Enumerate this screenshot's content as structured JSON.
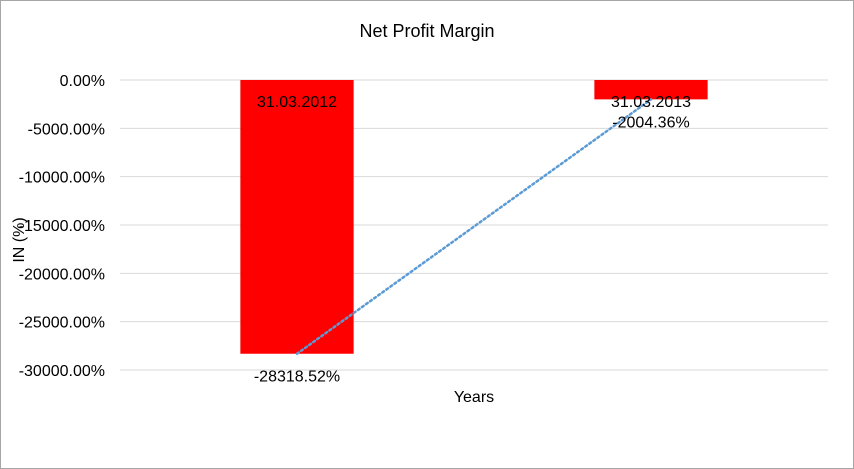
{
  "chart_data": {
    "type": "bar",
    "title": "Net Profit Margin",
    "xlabel": "Years",
    "ylabel": "IN (%)",
    "categories": [
      "31.03.2012",
      "31.03.2013"
    ],
    "series": [
      {
        "values": [
          -28318.52,
          -2004.36
        ],
        "data_labels": [
          "-28318.52%",
          "-2004.36%"
        ],
        "color": "#ff0000"
      }
    ],
    "trendline": {
      "style": "dotted",
      "color": "#5b9bd5",
      "type": "linear"
    },
    "ylim": [
      -30000,
      0
    ],
    "yticks": [
      0,
      -5000,
      -10000,
      -15000,
      -20000,
      -25000,
      -30000
    ],
    "ytick_labels": [
      "0.00%",
      "-5000.00%",
      "-10000.00%",
      "-15000.00%",
      "-20000.00%",
      "-25000.00%",
      "-30000.00%"
    ],
    "grid": true,
    "legend": "none"
  }
}
